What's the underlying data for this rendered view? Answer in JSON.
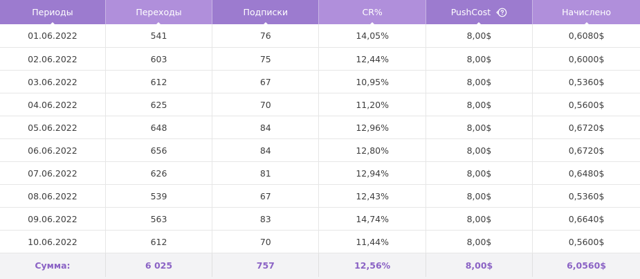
{
  "table": {
    "headers": [
      {
        "label": "Периоды"
      },
      {
        "label": "Переходы"
      },
      {
        "label": "Подписки"
      },
      {
        "label": "CR%"
      },
      {
        "label": "PushCost",
        "icon": "help-icon"
      },
      {
        "label": "Начислено"
      }
    ],
    "rows": [
      [
        "01.06.2022",
        "541",
        "76",
        "14,05%",
        "8,00$",
        "0,6080$"
      ],
      [
        "02.06.2022",
        "603",
        "75",
        "12,44%",
        "8,00$",
        "0,6000$"
      ],
      [
        "03.06.2022",
        "612",
        "67",
        "10,95%",
        "8,00$",
        "0,5360$"
      ],
      [
        "04.06.2022",
        "625",
        "70",
        "11,20%",
        "8,00$",
        "0,5600$"
      ],
      [
        "05.06.2022",
        "648",
        "84",
        "12,96%",
        "8,00$",
        "0,6720$"
      ],
      [
        "06.06.2022",
        "656",
        "84",
        "12,80%",
        "8,00$",
        "0,6720$"
      ],
      [
        "07.06.2022",
        "626",
        "81",
        "12,94%",
        "8,00$",
        "0,6480$"
      ],
      [
        "08.06.2022",
        "539",
        "67",
        "12,43%",
        "8,00$",
        "0,5360$"
      ],
      [
        "09.06.2022",
        "563",
        "83",
        "14,74%",
        "8,00$",
        "0,6640$"
      ],
      [
        "10.06.2022",
        "612",
        "70",
        "11,44%",
        "8,00$",
        "0,5600$"
      ]
    ],
    "totals": [
      "Сумма:",
      "6 025",
      "757",
      "12,56%",
      "8,00$",
      "6,0560$"
    ]
  },
  "colors": {
    "header_dark": "#9c7bcf",
    "header_light": "#b08fdb",
    "totals_text": "#8b63c5",
    "totals_bg": "#f3f3f5"
  }
}
